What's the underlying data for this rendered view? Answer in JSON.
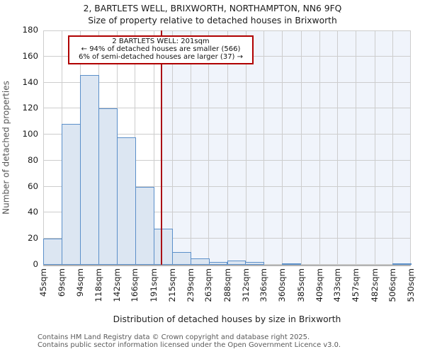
{
  "title": "2, BARTLETS WELL, BRIXWORTH, NORTHAMPTON, NN6 9FQ",
  "subtitle": "Size of property relative to detached houses in Brixworth",
  "annotation": {
    "line1": "2 BARTLETS WELL: 201sqm",
    "line2": "← 94% of detached houses are smaller (566)",
    "line3": "6% of semi-detached houses are larger (37) →"
  },
  "footer": {
    "line1": "Contains HM Land Registry data © Crown copyright and database right 2025.",
    "line2": "Contains public sector information licensed under the Open Government Licence v3.0."
  },
  "chart_data": {
    "type": "bar",
    "title": "2, BARTLETS WELL, BRIXWORTH, NORTHAMPTON, NN6 9FQ",
    "subtitle": "Size of property relative to detached houses in Brixworth",
    "xlabel": "Distribution of detached houses by size in Brixworth",
    "ylabel": "Number of detached properties",
    "bin_edges_sqm": [
      45,
      69,
      94,
      118,
      142,
      166,
      191,
      215,
      239,
      263,
      288,
      312,
      336,
      360,
      385,
      409,
      433,
      457,
      482,
      506,
      530
    ],
    "x_tick_labels": [
      "45sqm",
      "69sqm",
      "94sqm",
      "118sqm",
      "142sqm",
      "166sqm",
      "191sqm",
      "215sqm",
      "239sqm",
      "263sqm",
      "288sqm",
      "312sqm",
      "336sqm",
      "360sqm",
      "385sqm",
      "409sqm",
      "433sqm",
      "457sqm",
      "482sqm",
      "506sqm",
      "530sqm"
    ],
    "values": [
      20,
      108,
      146,
      120,
      98,
      60,
      28,
      10,
      5,
      2,
      3,
      2,
      0,
      1,
      0,
      0,
      0,
      0,
      0,
      1
    ],
    "y_ticks": [
      0,
      20,
      40,
      60,
      80,
      100,
      120,
      140,
      160,
      180
    ],
    "ylim": [
      0,
      180
    ],
    "xlim_sqm": [
      45,
      530
    ],
    "grid": true,
    "legend": "none",
    "marker": {
      "label": "2 BARTLETS WELL",
      "value_sqm": 201,
      "smaller_pct": "94%",
      "smaller_count": 566,
      "larger_pct": "6%",
      "larger_count": 37
    },
    "colors": {
      "bar_fill": "#dce6f2",
      "bar_edge": "#5b8fc9",
      "grid": "#cdcdcd",
      "shade_right_of_marker": "#f0f4fb",
      "marker_line": "#a91016",
      "annotation_border": "#b00000",
      "axis_baseline": "#b3b3b3"
    }
  }
}
